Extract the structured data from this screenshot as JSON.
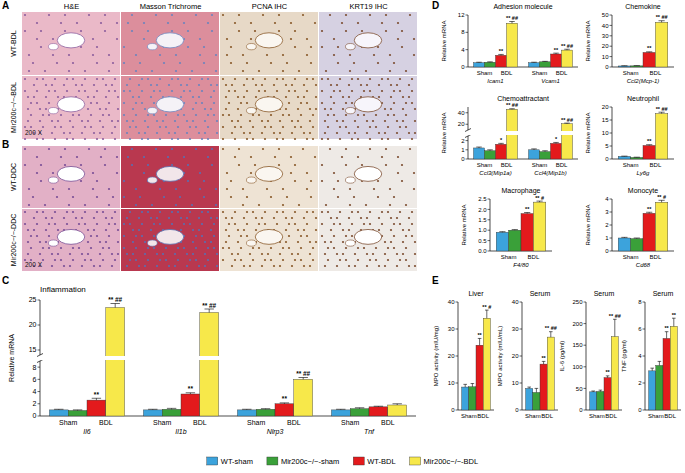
{
  "image_panels": [
    {
      "panel": "A",
      "columns": [
        "H&E",
        "Masson Trichrome",
        "PCNA IHC",
        "KRT19 IHC"
      ],
      "rows": [
        "WT-BDL",
        "Mir200c−/−-BDL"
      ],
      "magnification": "200 X"
    },
    {
      "panel": "B",
      "rows": [
        "WT-DDC",
        "Mir200c−/−-DDC"
      ],
      "magnification": "200 X"
    }
  ],
  "panel_labels": [
    "C",
    "D",
    "E"
  ],
  "chart_data": [
    {
      "type": "bar",
      "title": "Inflammation",
      "y_label": "Relative mRNA",
      "categories": [
        "Il6",
        "Il1b",
        "Nlrp3",
        "Tnf"
      ],
      "sub_categories": [
        "Sham",
        "BDL"
      ],
      "ylim": [
        0,
        25
      ],
      "yticks": [
        0,
        2,
        4,
        6,
        8,
        15,
        20,
        25
      ],
      "y_break": [
        9,
        14
      ],
      "series": [
        {
          "name": "WT-sham",
          "color": "#3ca3dc",
          "values": [
            1,
            1,
            1,
            1
          ],
          "errors": [
            0.1,
            0.1,
            0.1,
            0.1
          ]
        },
        {
          "name": "Mir200c−/−-sham",
          "color": "#3aa039",
          "values": [
            0.9,
            1.1,
            1.1,
            1.2
          ],
          "errors": [
            0.1,
            0.15,
            0.1,
            0.15
          ]
        },
        {
          "name": "WT-BDL",
          "color": "#e31a1c",
          "values": [
            2.6,
            3.6,
            2.0,
            1.5
          ],
          "errors": [
            0.3,
            0.2,
            0.15,
            0.1
          ],
          "annotations": [
            "**",
            "**",
            "**",
            null
          ]
        },
        {
          "name": "Mir200c−/−-BDL",
          "color": "#f7e84a",
          "values": [
            23.5,
            22.5,
            6.0,
            1.8
          ],
          "errors": [
            0.8,
            0.7,
            0.3,
            0.2
          ],
          "annotations": [
            "** ##",
            "** ##",
            "** ##",
            null
          ]
        }
      ]
    },
    {
      "type": "bar",
      "title": "Adhesion molecule",
      "y_label": "Relative mRNA",
      "categories": [
        "Icam1",
        "Vcam1"
      ],
      "sub_categories": [
        "Sham",
        "BDL"
      ],
      "ylim": [
        0,
        12
      ],
      "yticks": [
        0,
        4,
        8,
        12
      ],
      "series": [
        {
          "color": "#3ca3dc",
          "values": [
            1,
            1
          ],
          "errors": [
            0.1,
            0.1
          ]
        },
        {
          "color": "#3aa039",
          "values": [
            1.1,
            1.2
          ],
          "errors": [
            0.1,
            0.1
          ]
        },
        {
          "color": "#e31a1c",
          "values": [
            2.7,
            3.0
          ],
          "errors": [
            0.2,
            0.2
          ],
          "annotations": [
            "**",
            "**"
          ]
        },
        {
          "color": "#f7e84a",
          "values": [
            10.1,
            3.9
          ],
          "errors": [
            0.4,
            0.2
          ],
          "annotations": [
            "** ##",
            "** ##"
          ]
        }
      ]
    },
    {
      "type": "bar",
      "title": "Chemokine",
      "y_label": "Relative mRNA",
      "categories": [
        "Ccl2(Mcp-1)"
      ],
      "sub_categories": [
        "Sham",
        "BDL"
      ],
      "ylim": [
        0,
        50
      ],
      "yticks": [
        0,
        10,
        20,
        30,
        40,
        50
      ],
      "series": [
        {
          "color": "#3ca3dc",
          "values": [
            1
          ],
          "errors": [
            0.2
          ]
        },
        {
          "color": "#3aa039",
          "values": [
            1.1
          ],
          "errors": [
            0.2
          ]
        },
        {
          "color": "#e31a1c",
          "values": [
            14
          ],
          "errors": [
            0.6
          ],
          "annotations": [
            "**"
          ]
        },
        {
          "color": "#f7e84a",
          "values": [
            43
          ],
          "errors": [
            1.5
          ],
          "annotations": [
            "** ##"
          ]
        }
      ]
    },
    {
      "type": "bar",
      "title": "Chemoattractant",
      "y_label": "Relative mRNA",
      "categories": [
        "Ccl3(Mip1a)",
        "Ccl4(Mip1b)"
      ],
      "sub_categories": [
        "Sham",
        "BDL"
      ],
      "ylim": [
        0,
        50
      ],
      "yticks": [
        0,
        1,
        2,
        20,
        40
      ],
      "y_break": [
        2.5,
        10
      ],
      "series": [
        {
          "color": "#3ca3dc",
          "values": [
            1.2,
            1.0
          ],
          "errors": [
            0.1,
            0.1
          ]
        },
        {
          "color": "#3aa039",
          "values": [
            0.9,
            0.8
          ],
          "errors": [
            0.1,
            0.1
          ]
        },
        {
          "color": "#e31a1c",
          "values": [
            1.6,
            1.7
          ],
          "errors": [
            0.1,
            0.1
          ],
          "annotations": [
            "*",
            "*"
          ]
        },
        {
          "color": "#f7e84a",
          "values": [
            46,
            21
          ],
          "errors": [
            1.0,
            1.0
          ],
          "annotations": [
            "** ##",
            "** ##"
          ]
        }
      ]
    },
    {
      "type": "bar",
      "title": "Neutrophil",
      "y_label": "Relative mRNA",
      "categories": [
        "Ly6g"
      ],
      "sub_categories": [
        "Sham",
        "BDL"
      ],
      "ylim": [
        0,
        20
      ],
      "yticks": [
        0,
        5,
        10,
        15,
        20
      ],
      "series": [
        {
          "color": "#3ca3dc",
          "values": [
            1
          ],
          "errors": [
            0.1
          ]
        },
        {
          "color": "#3aa039",
          "values": [
            0.6
          ],
          "errors": [
            0.1
          ]
        },
        {
          "color": "#e31a1c",
          "values": [
            5.2
          ],
          "errors": [
            0.3
          ],
          "annotations": [
            "**"
          ]
        },
        {
          "color": "#f7e84a",
          "values": [
            17.5
          ],
          "errors": [
            0.5
          ],
          "annotations": [
            "** ##"
          ]
        }
      ]
    },
    {
      "type": "bar",
      "title": "Macrophage",
      "y_label": "Relative mRNA",
      "categories": [
        "F4/80"
      ],
      "sub_categories": [
        "Sham",
        "BDL"
      ],
      "ylim": [
        0,
        2.5
      ],
      "yticks": [
        {
          "value": 0,
          "label": "0.0"
        },
        {
          "value": 0.5,
          "label": "0.5"
        },
        {
          "value": 1,
          "label": "1.0"
        },
        {
          "value": 1.5,
          "label": "1.5"
        },
        {
          "value": 2,
          "label": "2.0"
        },
        {
          "value": 2.5,
          "label": "2.5"
        }
      ],
      "series": [
        {
          "color": "#3ca3dc",
          "values": [
            0.9
          ],
          "errors": [
            0.03
          ]
        },
        {
          "color": "#3aa039",
          "values": [
            1.0
          ],
          "errors": [
            0.03
          ]
        },
        {
          "color": "#e31a1c",
          "values": [
            1.8
          ],
          "errors": [
            0.05
          ],
          "annotations": [
            "**"
          ]
        },
        {
          "color": "#f7e84a",
          "values": [
            2.35
          ],
          "errors": [
            0.05
          ],
          "annotations": [
            "** #"
          ]
        }
      ]
    },
    {
      "type": "bar",
      "title": "Monocyte",
      "y_label": "Relative mRNA",
      "categories": [
        "Cd68"
      ],
      "sub_categories": [
        "Sham",
        "BDL"
      ],
      "ylim": [
        0,
        4
      ],
      "yticks": [
        0,
        1,
        2,
        3,
        4
      ],
      "series": [
        {
          "color": "#3ca3dc",
          "values": [
            1
          ],
          "errors": [
            0.05
          ]
        },
        {
          "color": "#3aa039",
          "values": [
            0.95
          ],
          "errors": [
            0.05
          ]
        },
        {
          "color": "#e31a1c",
          "values": [
            2.9
          ],
          "errors": [
            0.08
          ],
          "annotations": [
            "**"
          ]
        },
        {
          "color": "#f7e84a",
          "values": [
            3.75
          ],
          "errors": [
            0.15
          ],
          "annotations": [
            "** #"
          ]
        }
      ]
    },
    {
      "type": "bar",
      "title": "Liver",
      "y_label": "MPO activity (mIU/mg)",
      "categories": [
        null
      ],
      "sub_categories": [
        "Sham",
        "BDL"
      ],
      "ylim": [
        0,
        40
      ],
      "yticks": [
        0,
        10,
        20,
        30,
        40
      ],
      "series": [
        {
          "color": "#3ca3dc",
          "values": [
            8.5
          ],
          "errors": [
            1.0
          ]
        },
        {
          "color": "#3aa039",
          "values": [
            8.6
          ],
          "errors": [
            1.2
          ]
        },
        {
          "color": "#e31a1c",
          "values": [
            24
          ],
          "errors": [
            2.5
          ],
          "annotations": [
            "**"
          ]
        },
        {
          "color": "#f7e84a",
          "values": [
            34
          ],
          "errors": [
            3.0
          ],
          "annotations": [
            "** #"
          ]
        }
      ]
    },
    {
      "type": "bar",
      "title": "Serum",
      "y_label": "MPO activity (mIU/mL)",
      "categories": [
        null
      ],
      "sub_categories": [
        "Sham",
        "BDL"
      ],
      "ylim": [
        0,
        40
      ],
      "yticks": [
        0,
        10,
        20,
        30,
        40
      ],
      "series": [
        {
          "color": "#3ca3dc",
          "values": [
            8
          ],
          "errors": [
            0.5
          ]
        },
        {
          "color": "#3aa039",
          "values": [
            6.5
          ],
          "errors": [
            1.5
          ]
        },
        {
          "color": "#e31a1c",
          "values": [
            17
          ],
          "errors": [
            1.0
          ],
          "annotations": [
            "**"
          ]
        },
        {
          "color": "#f7e84a",
          "values": [
            27
          ],
          "errors": [
            2.0
          ],
          "annotations": [
            "** ##"
          ]
        }
      ]
    },
    {
      "type": "bar",
      "title": "Serum",
      "y_label": "IL-6 (pg/ml)",
      "categories": [
        null
      ],
      "sub_categories": [
        "Sham",
        "BDL"
      ],
      "ylim": [
        0,
        250
      ],
      "yticks": [
        0,
        50,
        100,
        150,
        200,
        250
      ],
      "series": [
        {
          "color": "#3ca3dc",
          "values": [
            42
          ],
          "errors": [
            2
          ]
        },
        {
          "color": "#3aa039",
          "values": [
            43
          ],
          "errors": [
            3
          ]
        },
        {
          "color": "#e31a1c",
          "values": [
            75
          ],
          "errors": [
            4
          ],
          "annotations": [
            "**"
          ]
        },
        {
          "color": "#f7e84a",
          "values": [
            170
          ],
          "errors": [
            40
          ],
          "annotations": [
            "** ##"
          ]
        }
      ]
    },
    {
      "type": "bar",
      "title": "Serum",
      "y_label": "TNF (pg/ml)",
      "categories": [
        null
      ],
      "sub_categories": [
        "Sham",
        "BDL"
      ],
      "ylim": [
        0,
        8
      ],
      "yticks": [
        0,
        2,
        4,
        6,
        8
      ],
      "series": [
        {
          "color": "#3ca3dc",
          "values": [
            2.9
          ],
          "errors": [
            0.2
          ]
        },
        {
          "color": "#3aa039",
          "values": [
            3.3
          ],
          "errors": [
            0.3
          ]
        },
        {
          "color": "#e31a1c",
          "values": [
            5.3
          ],
          "errors": [
            0.5
          ],
          "annotations": [
            "**"
          ]
        },
        {
          "color": "#f7e84a",
          "values": [
            6.2
          ],
          "errors": [
            0.6
          ],
          "annotations": [
            "**"
          ]
        }
      ]
    }
  ]
}
